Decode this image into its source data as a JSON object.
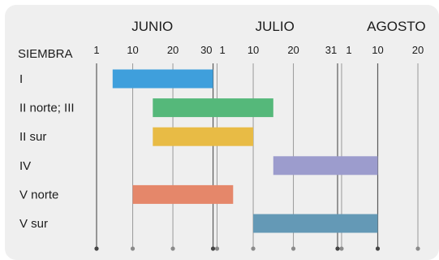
{
  "chart_data": {
    "type": "gantt",
    "title": "",
    "row_header": "SIEMBRA",
    "months": [
      {
        "label": "JUNIO"
      },
      {
        "label": "JULIO"
      },
      {
        "label": "AGOSTO"
      }
    ],
    "ticks": [
      {
        "label": "1",
        "date": "06-01"
      },
      {
        "label": "10",
        "date": "06-10"
      },
      {
        "label": "20",
        "date": "06-20"
      },
      {
        "label": "30",
        "date": "06-30"
      },
      {
        "label": "1",
        "date": "07-01"
      },
      {
        "label": "10",
        "date": "07-10"
      },
      {
        "label": "20",
        "date": "07-20"
      },
      {
        "label": "31",
        "date": "07-31"
      },
      {
        "label": "1",
        "date": "08-01"
      },
      {
        "label": "10",
        "date": "08-10"
      },
      {
        "label": "20",
        "date": "08-20"
      }
    ],
    "x_range": [
      "06-01",
      "08-23"
    ],
    "grid": true,
    "rows": [
      {
        "label": "I",
        "start": "06-05",
        "end": "06-30",
        "color": "#3f9fdc"
      },
      {
        "label": "II norte; III",
        "start": "06-15",
        "end": "07-15",
        "color": "#55b87a"
      },
      {
        "label": "II sur",
        "start": "06-15",
        "end": "07-10",
        "color": "#e8bb45"
      },
      {
        "label": "IV",
        "start": "07-15",
        "end": "08-10",
        "color": "#9c9ccd"
      },
      {
        "label": "V norte",
        "start": "06-10",
        "end": "07-05",
        "color": "#e5876a"
      },
      {
        "label": "V sur",
        "start": "07-10",
        "end": "08-10",
        "color": "#6499b6"
      }
    ]
  }
}
